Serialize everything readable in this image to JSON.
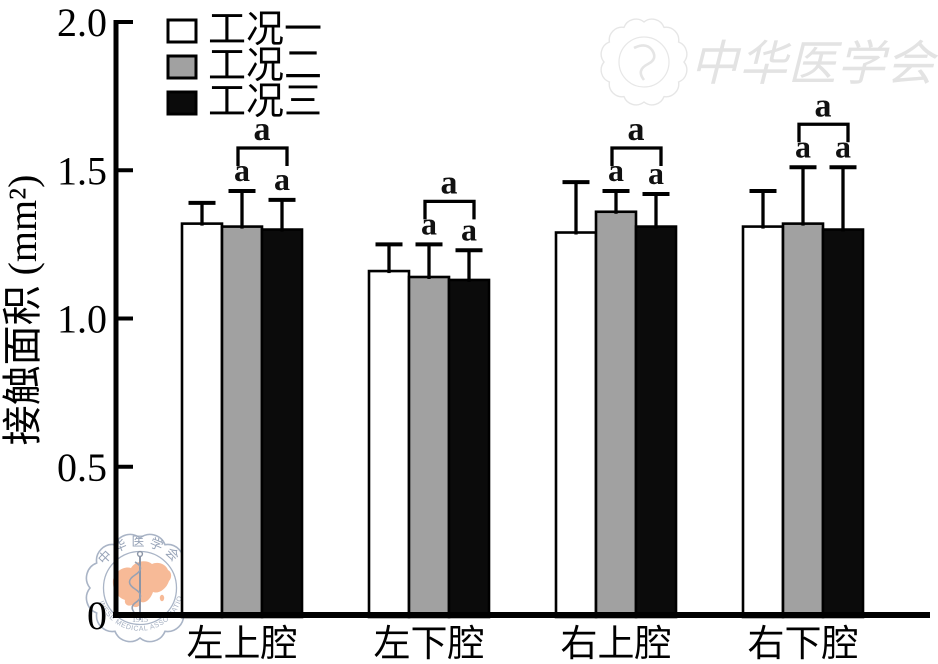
{
  "chart_data": {
    "type": "bar",
    "title": "",
    "ylabel": "接触面积 (mm²)",
    "xlabel": "",
    "ylim": [
      0,
      2.0
    ],
    "ytick_values": [
      0,
      0.5,
      1.0,
      1.5,
      2.0
    ],
    "ytick_labels": [
      "0",
      "0.5",
      "1.0",
      "1.5",
      "2.0"
    ],
    "categories": [
      "左上腔",
      "左下腔",
      "右上腔",
      "右下腔"
    ],
    "series": [
      {
        "name": "工况一",
        "fill": "#ffffff",
        "values": [
          1.32,
          1.16,
          1.29,
          1.31
        ],
        "errors": [
          0.07,
          0.09,
          0.17,
          0.12
        ]
      },
      {
        "name": "工况二",
        "fill": "#a1a1a1",
        "values": [
          1.31,
          1.14,
          1.36,
          1.32
        ],
        "errors": [
          0.12,
          0.11,
          0.07,
          0.19
        ]
      },
      {
        "name": "工况三",
        "fill": "#0b0b0b",
        "values": [
          1.3,
          1.13,
          1.31,
          1.3
        ],
        "errors": [
          0.1,
          0.1,
          0.11,
          0.21
        ]
      }
    ],
    "significance": {
      "label": "a",
      "above_error_bars_of": [
        "工况二",
        "工况三"
      ],
      "bracket_between": [
        "工况二",
        "工况三"
      ]
    },
    "legend_position": "top-left",
    "grid": false,
    "bar_edge_color": "#000000",
    "error_bar_style": "upper-cap-only"
  },
  "watermarks": {
    "bottom_left_seal": {
      "org_zh": "中华医学会",
      "org_en": "CHINESE MEDICAL ASSOCIATION",
      "year": "1915",
      "ring_color": "#a9b4c6",
      "text_color": "#98a4b8",
      "map_color": "#f7ba97",
      "staff_color": "#8b95a6"
    },
    "top_right": {
      "text": "中华医学会",
      "color": "#e3e3e3"
    }
  }
}
